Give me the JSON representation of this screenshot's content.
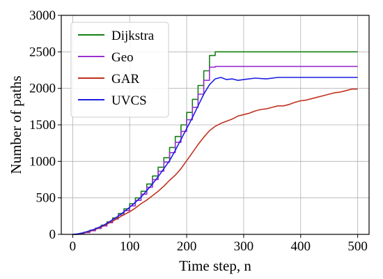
{
  "chart_data": {
    "type": "line",
    "xlabel": "Time step, n",
    "ylabel": "Number of paths",
    "xlim": [
      -20,
      520
    ],
    "ylim": [
      0,
      3000
    ],
    "xticks": [
      0,
      100,
      200,
      300,
      400,
      500
    ],
    "yticks": [
      0,
      500,
      1000,
      1500,
      2000,
      2500,
      3000
    ],
    "grid": true,
    "legend_position": "top-left",
    "series": [
      {
        "name": "Dijkstra",
        "color": "#138013",
        "style": "step",
        "x": [
          0,
          10,
          20,
          30,
          40,
          50,
          60,
          70,
          80,
          90,
          100,
          110,
          120,
          130,
          140,
          150,
          160,
          170,
          180,
          190,
          200,
          210,
          220,
          230,
          240,
          250,
          260,
          300,
          350,
          400,
          450,
          500
        ],
        "y": [
          0,
          10,
          30,
          55,
          85,
          125,
          170,
          225,
          285,
          350,
          420,
          500,
          590,
          690,
          800,
          920,
          1050,
          1190,
          1340,
          1500,
          1670,
          1850,
          2040,
          2240,
          2450,
          2500,
          2500,
          2500,
          2500,
          2500,
          2500,
          2500
        ]
      },
      {
        "name": "Geo",
        "color": "#9a2fd2",
        "style": "step",
        "x": [
          0,
          10,
          20,
          30,
          40,
          50,
          60,
          70,
          80,
          90,
          100,
          110,
          120,
          130,
          140,
          150,
          160,
          170,
          180,
          190,
          200,
          210,
          220,
          230,
          240,
          250,
          260,
          300,
          350,
          400,
          450,
          500
        ],
        "y": [
          0,
          8,
          25,
          50,
          80,
          115,
          160,
          210,
          265,
          325,
          390,
          465,
          550,
          645,
          750,
          865,
          990,
          1120,
          1260,
          1410,
          1570,
          1740,
          1920,
          2110,
          2290,
          2300,
          2300,
          2300,
          2300,
          2300,
          2300,
          2300
        ]
      },
      {
        "name": "GAR",
        "color": "#c0311f",
        "style": "line",
        "x": [
          0,
          10,
          20,
          30,
          40,
          50,
          60,
          70,
          80,
          90,
          100,
          110,
          120,
          130,
          140,
          150,
          160,
          170,
          180,
          190,
          200,
          210,
          220,
          230,
          240,
          250,
          260,
          270,
          280,
          290,
          300,
          310,
          320,
          330,
          340,
          350,
          360,
          370,
          380,
          390,
          400,
          410,
          420,
          430,
          440,
          450,
          460,
          470,
          480,
          490,
          500
        ],
        "y": [
          0,
          5,
          20,
          40,
          70,
          100,
          140,
          180,
          225,
          270,
          310,
          360,
          420,
          470,
          530,
          590,
          660,
          740,
          810,
          900,
          1010,
          1120,
          1230,
          1330,
          1420,
          1480,
          1520,
          1550,
          1580,
          1620,
          1640,
          1660,
          1690,
          1710,
          1720,
          1740,
          1760,
          1760,
          1780,
          1810,
          1830,
          1840,
          1860,
          1880,
          1900,
          1920,
          1940,
          1950,
          1970,
          1990,
          1990
        ]
      },
      {
        "name": "UVCS",
        "color": "#1a1ee0",
        "style": "line",
        "x": [
          0,
          10,
          20,
          30,
          40,
          50,
          60,
          70,
          80,
          90,
          100,
          110,
          120,
          130,
          140,
          150,
          160,
          170,
          180,
          190,
          200,
          210,
          220,
          230,
          240,
          250,
          260,
          270,
          280,
          290,
          300,
          320,
          340,
          360,
          380,
          400,
          420,
          440,
          460,
          480,
          500
        ],
        "y": [
          0,
          8,
          25,
          50,
          75,
          110,
          150,
          200,
          250,
          310,
          370,
          440,
          510,
          600,
          690,
          790,
          900,
          1010,
          1150,
          1300,
          1450,
          1600,
          1760,
          1920,
          2050,
          2130,
          2150,
          2120,
          2130,
          2110,
          2120,
          2140,
          2130,
          2150,
          2150,
          2150,
          2150,
          2150,
          2150,
          2150,
          2150
        ]
      }
    ]
  }
}
